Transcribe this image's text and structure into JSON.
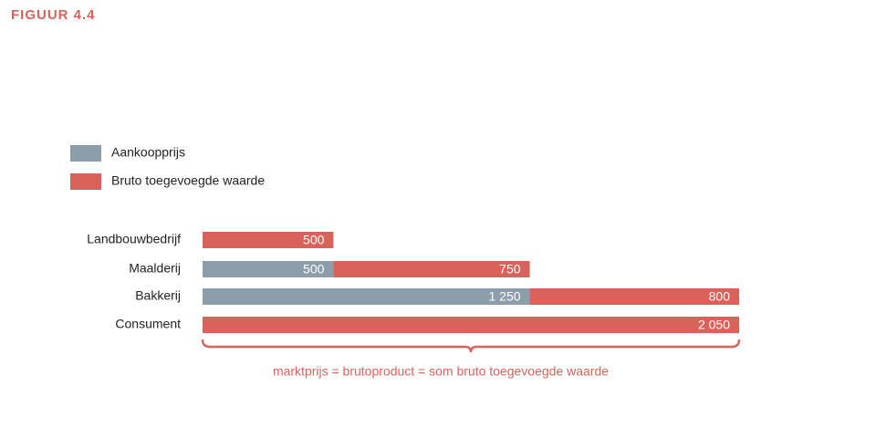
{
  "chart_data": {
    "type": "stacked-bar-horizontal",
    "title": "FIGUUR 4.4",
    "categories": [
      "Landbouwbedrijf",
      "Maalderij",
      "Bakkerij",
      "Consument"
    ],
    "series": [
      {
        "name": "Aankoopprijs",
        "color": "#8d9eab",
        "values": [
          null,
          500,
          1250,
          null
        ],
        "value_labels": [
          null,
          "500",
          "1 250",
          null
        ]
      },
      {
        "name": "Bruto toegevoegde waarde",
        "color": "#d9625b",
        "values": [
          500,
          750,
          800,
          2050
        ],
        "value_labels": [
          "500",
          "750",
          "800",
          "2 050"
        ]
      }
    ],
    "annotation": "marktprijs = brutoproduct = som bruto toegevoegde waarde",
    "accent_color": "#d9625b"
  }
}
